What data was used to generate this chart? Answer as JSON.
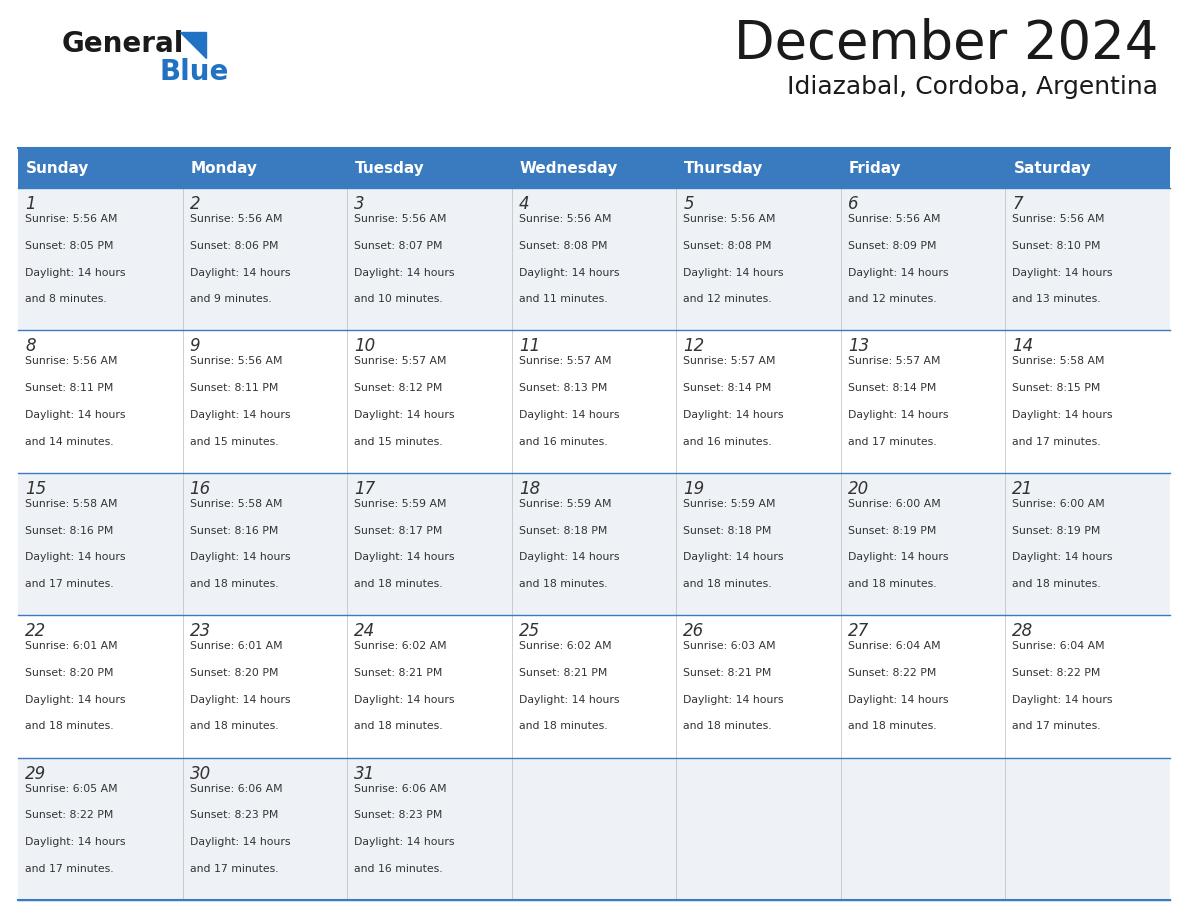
{
  "title": "December 2024",
  "subtitle": "Idiazabal, Cordoba, Argentina",
  "header_color": "#3a7abf",
  "header_text_color": "#ffffff",
  "cell_bg_even": "#eef2f7",
  "cell_bg_odd": "#ffffff",
  "border_color": "#3a7abf",
  "text_color": "#333333",
  "days_of_week": [
    "Sunday",
    "Monday",
    "Tuesday",
    "Wednesday",
    "Thursday",
    "Friday",
    "Saturday"
  ],
  "weeks": [
    [
      {
        "day": 1,
        "sunrise": "5:56 AM",
        "sunset": "8:05 PM",
        "daylight_hours": 14,
        "daylight_minutes": 8
      },
      {
        "day": 2,
        "sunrise": "5:56 AM",
        "sunset": "8:06 PM",
        "daylight_hours": 14,
        "daylight_minutes": 9
      },
      {
        "day": 3,
        "sunrise": "5:56 AM",
        "sunset": "8:07 PM",
        "daylight_hours": 14,
        "daylight_minutes": 10
      },
      {
        "day": 4,
        "sunrise": "5:56 AM",
        "sunset": "8:08 PM",
        "daylight_hours": 14,
        "daylight_minutes": 11
      },
      {
        "day": 5,
        "sunrise": "5:56 AM",
        "sunset": "8:08 PM",
        "daylight_hours": 14,
        "daylight_minutes": 12
      },
      {
        "day": 6,
        "sunrise": "5:56 AM",
        "sunset": "8:09 PM",
        "daylight_hours": 14,
        "daylight_minutes": 12
      },
      {
        "day": 7,
        "sunrise": "5:56 AM",
        "sunset": "8:10 PM",
        "daylight_hours": 14,
        "daylight_minutes": 13
      }
    ],
    [
      {
        "day": 8,
        "sunrise": "5:56 AM",
        "sunset": "8:11 PM",
        "daylight_hours": 14,
        "daylight_minutes": 14
      },
      {
        "day": 9,
        "sunrise": "5:56 AM",
        "sunset": "8:11 PM",
        "daylight_hours": 14,
        "daylight_minutes": 15
      },
      {
        "day": 10,
        "sunrise": "5:57 AM",
        "sunset": "8:12 PM",
        "daylight_hours": 14,
        "daylight_minutes": 15
      },
      {
        "day": 11,
        "sunrise": "5:57 AM",
        "sunset": "8:13 PM",
        "daylight_hours": 14,
        "daylight_minutes": 16
      },
      {
        "day": 12,
        "sunrise": "5:57 AM",
        "sunset": "8:14 PM",
        "daylight_hours": 14,
        "daylight_minutes": 16
      },
      {
        "day": 13,
        "sunrise": "5:57 AM",
        "sunset": "8:14 PM",
        "daylight_hours": 14,
        "daylight_minutes": 17
      },
      {
        "day": 14,
        "sunrise": "5:58 AM",
        "sunset": "8:15 PM",
        "daylight_hours": 14,
        "daylight_minutes": 17
      }
    ],
    [
      {
        "day": 15,
        "sunrise": "5:58 AM",
        "sunset": "8:16 PM",
        "daylight_hours": 14,
        "daylight_minutes": 17
      },
      {
        "day": 16,
        "sunrise": "5:58 AM",
        "sunset": "8:16 PM",
        "daylight_hours": 14,
        "daylight_minutes": 18
      },
      {
        "day": 17,
        "sunrise": "5:59 AM",
        "sunset": "8:17 PM",
        "daylight_hours": 14,
        "daylight_minutes": 18
      },
      {
        "day": 18,
        "sunrise": "5:59 AM",
        "sunset": "8:18 PM",
        "daylight_hours": 14,
        "daylight_minutes": 18
      },
      {
        "day": 19,
        "sunrise": "5:59 AM",
        "sunset": "8:18 PM",
        "daylight_hours": 14,
        "daylight_minutes": 18
      },
      {
        "day": 20,
        "sunrise": "6:00 AM",
        "sunset": "8:19 PM",
        "daylight_hours": 14,
        "daylight_minutes": 18
      },
      {
        "day": 21,
        "sunrise": "6:00 AM",
        "sunset": "8:19 PM",
        "daylight_hours": 14,
        "daylight_minutes": 18
      }
    ],
    [
      {
        "day": 22,
        "sunrise": "6:01 AM",
        "sunset": "8:20 PM",
        "daylight_hours": 14,
        "daylight_minutes": 18
      },
      {
        "day": 23,
        "sunrise": "6:01 AM",
        "sunset": "8:20 PM",
        "daylight_hours": 14,
        "daylight_minutes": 18
      },
      {
        "day": 24,
        "sunrise": "6:02 AM",
        "sunset": "8:21 PM",
        "daylight_hours": 14,
        "daylight_minutes": 18
      },
      {
        "day": 25,
        "sunrise": "6:02 AM",
        "sunset": "8:21 PM",
        "daylight_hours": 14,
        "daylight_minutes": 18
      },
      {
        "day": 26,
        "sunrise": "6:03 AM",
        "sunset": "8:21 PM",
        "daylight_hours": 14,
        "daylight_minutes": 18
      },
      {
        "day": 27,
        "sunrise": "6:04 AM",
        "sunset": "8:22 PM",
        "daylight_hours": 14,
        "daylight_minutes": 18
      },
      {
        "day": 28,
        "sunrise": "6:04 AM",
        "sunset": "8:22 PM",
        "daylight_hours": 14,
        "daylight_minutes": 17
      }
    ],
    [
      {
        "day": 29,
        "sunrise": "6:05 AM",
        "sunset": "8:22 PM",
        "daylight_hours": 14,
        "daylight_minutes": 17
      },
      {
        "day": 30,
        "sunrise": "6:06 AM",
        "sunset": "8:23 PM",
        "daylight_hours": 14,
        "daylight_minutes": 17
      },
      {
        "day": 31,
        "sunrise": "6:06 AM",
        "sunset": "8:23 PM",
        "daylight_hours": 14,
        "daylight_minutes": 16
      },
      null,
      null,
      null,
      null
    ]
  ],
  "num_weeks": 5,
  "fig_width": 11.88,
  "fig_height": 9.18,
  "dpi": 100
}
